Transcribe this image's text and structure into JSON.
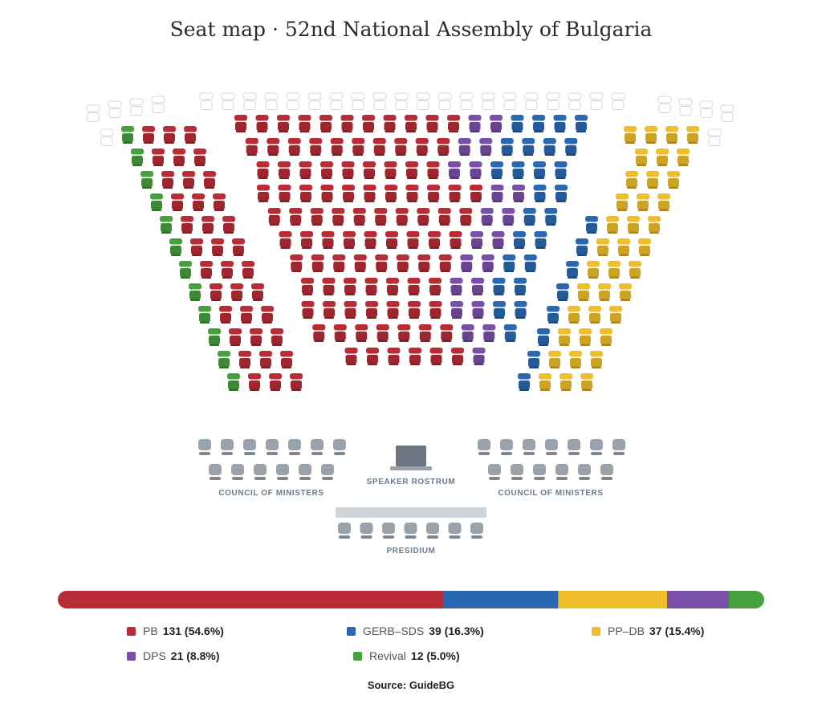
{
  "chart_data": {
    "type": "parliament-seat-map",
    "title": "Seat map · 52nd National Assembly of Bulgaria",
    "total_seats": 240,
    "series": [
      {
        "name": "PB",
        "seats": 131,
        "percent": "54.6%",
        "label": "131 (54.6%)",
        "color": "#b92b35"
      },
      {
        "name": "GERB–SDS",
        "seats": 39,
        "percent": "16.3%",
        "label": "39 (16.3%)",
        "color": "#2a68b3"
      },
      {
        "name": "PP–DB",
        "seats": 37,
        "percent": "15.4%",
        "label": "37 (15.4%)",
        "color": "#f0bd2b"
      },
      {
        "name": "DPS",
        "seats": 21,
        "percent": "8.8%",
        "label": "21 (8.8%)",
        "color": "#7a4fa9"
      },
      {
        "name": "Revival",
        "seats": 12,
        "percent": "5.0%",
        "label": "12 (5.0%)",
        "color": "#46a03e"
      }
    ],
    "zones": {
      "council_of_ministers": "COUNCIL OF MINISTERS",
      "speaker_rostrum": "SPEAKER ROSTRUM",
      "presidium": "PRESIDIUM"
    },
    "source": "Source: GuideBG"
  }
}
